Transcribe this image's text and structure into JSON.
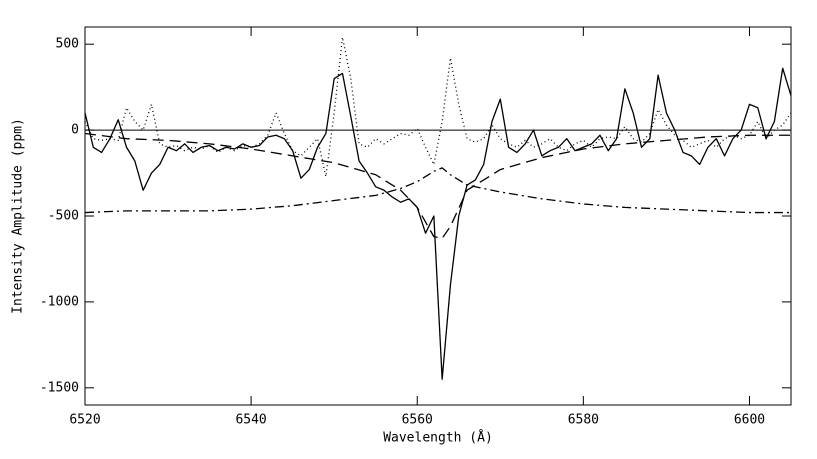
{
  "chart_data": {
    "type": "line",
    "xlabel": "Wavelength (Å)",
    "ylabel": "Intensity Amplitude (ppm)",
    "xlim": [
      6520,
      6605
    ],
    "ylim": [
      -1600,
      600
    ],
    "xticks": [
      6520,
      6540,
      6560,
      6580,
      6600
    ],
    "yticks": [
      -1500,
      -1000,
      -500,
      0,
      500
    ],
    "hline": 0,
    "series": [
      {
        "color": "#000000",
        "dash": "solid",
        "x": [
          6520,
          6521,
          6522,
          6523,
          6524,
          6525,
          6526,
          6527,
          6528,
          6529,
          6530,
          6531,
          6532,
          6533,
          6534,
          6535,
          6536,
          6537,
          6538,
          6539,
          6540,
          6541,
          6542,
          6543,
          6544,
          6545,
          6546,
          6547,
          6548,
          6549,
          6550,
          6551,
          6552,
          6553,
          6554,
          6555,
          6556,
          6557,
          6558,
          6559,
          6560,
          6561,
          6562,
          6563,
          6564,
          6565,
          6566,
          6567,
          6568,
          6569,
          6570,
          6571,
          6572,
          6573,
          6574,
          6575,
          6576,
          6577,
          6578,
          6579,
          6580,
          6581,
          6582,
          6583,
          6584,
          6585,
          6586,
          6587,
          6588,
          6589,
          6590,
          6591,
          6592,
          6593,
          6594,
          6595,
          6596,
          6597,
          6598,
          6599,
          6600,
          6601,
          6602,
          6603,
          6604,
          6605
        ],
        "values": [
          100,
          -100,
          -130,
          -50,
          60,
          -100,
          -180,
          -350,
          -250,
          -200,
          -100,
          -120,
          -80,
          -130,
          -100,
          -90,
          -120,
          -100,
          -110,
          -80,
          -100,
          -90,
          -40,
          -30,
          -50,
          -120,
          -280,
          -230,
          -100,
          -20,
          300,
          330,
          80,
          -180,
          -250,
          -330,
          -350,
          -390,
          -420,
          -400,
          -450,
          -600,
          -500,
          -1450,
          -900,
          -500,
          -320,
          -290,
          -200,
          50,
          180,
          -100,
          -130,
          -80,
          0,
          -150,
          -120,
          -100,
          -50,
          -120,
          -100,
          -80,
          -30,
          -120,
          -50,
          240,
          100,
          -100,
          -50,
          320,
          100,
          0,
          -130,
          -150,
          -200,
          -100,
          -50,
          -150,
          -50,
          0,
          150,
          130,
          -50,
          50,
          360,
          200
        ]
      },
      {
        "color": "#000000",
        "dash": "dotted",
        "x": [
          6520,
          6521,
          6522,
          6523,
          6524,
          6525,
          6526,
          6527,
          6528,
          6529,
          6530,
          6531,
          6532,
          6533,
          6534,
          6535,
          6536,
          6537,
          6538,
          6539,
          6540,
          6541,
          6542,
          6543,
          6544,
          6545,
          6546,
          6547,
          6548,
          6549,
          6550,
          6551,
          6552,
          6553,
          6554,
          6555,
          6556,
          6557,
          6558,
          6559,
          6560,
          6561,
          6562,
          6563,
          6564,
          6565,
          6566,
          6567,
          6568,
          6569,
          6570,
          6571,
          6572,
          6573,
          6574,
          6575,
          6576,
          6577,
          6578,
          6579,
          6580,
          6581,
          6582,
          6583,
          6584,
          6585,
          6586,
          6587,
          6588,
          6589,
          6590,
          6591,
          6592,
          6593,
          6594,
          6595,
          6596,
          6597,
          6598,
          6599,
          6600,
          6601,
          6602,
          6603,
          6604,
          6605
        ],
        "values": [
          50,
          -50,
          -60,
          -50,
          -60,
          130,
          50,
          0,
          150,
          -80,
          -100,
          -90,
          -120,
          -100,
          -110,
          -90,
          -130,
          -100,
          -120,
          -90,
          -100,
          -80,
          -30,
          100,
          -20,
          -120,
          -150,
          -100,
          -50,
          -270,
          100,
          540,
          300,
          -80,
          -100,
          -50,
          -80,
          -50,
          -20,
          -30,
          10,
          -100,
          -200,
          50,
          420,
          150,
          -50,
          -70,
          -50,
          30,
          -50,
          -80,
          -100,
          -60,
          -100,
          -80,
          -50,
          -100,
          -120,
          -80,
          -60,
          -100,
          -50,
          -40,
          -50,
          20,
          -50,
          -70,
          -20,
          120,
          30,
          -30,
          -60,
          -100,
          -80,
          -60,
          -100,
          -50,
          -30,
          -50,
          -30,
          50,
          -50,
          0,
          30,
          100
        ]
      },
      {
        "color": "#000000",
        "dash": "dashed",
        "x": [
          6520,
          6525,
          6530,
          6535,
          6540,
          6545,
          6550,
          6555,
          6558,
          6560,
          6562,
          6563,
          6564,
          6566,
          6570,
          6575,
          6580,
          6585,
          6590,
          6595,
          6600,
          6605
        ],
        "values": [
          -20,
          -50,
          -60,
          -80,
          -110,
          -150,
          -190,
          -260,
          -350,
          -450,
          -620,
          -630,
          -560,
          -350,
          -230,
          -160,
          -110,
          -80,
          -60,
          -40,
          -30,
          -30
        ]
      },
      {
        "color": "#000000",
        "dash": "dashdot",
        "x": [
          6520,
          6525,
          6530,
          6535,
          6540,
          6545,
          6550,
          6555,
          6558,
          6560,
          6562,
          6563,
          6564,
          6566,
          6570,
          6575,
          6580,
          6585,
          6590,
          6595,
          6600,
          6605
        ],
        "values": [
          -480,
          -470,
          -470,
          -470,
          -460,
          -440,
          -410,
          -380,
          -340,
          -300,
          -240,
          -220,
          -260,
          -320,
          -360,
          -400,
          -430,
          -450,
          -460,
          -470,
          -480,
          -480
        ]
      }
    ]
  }
}
